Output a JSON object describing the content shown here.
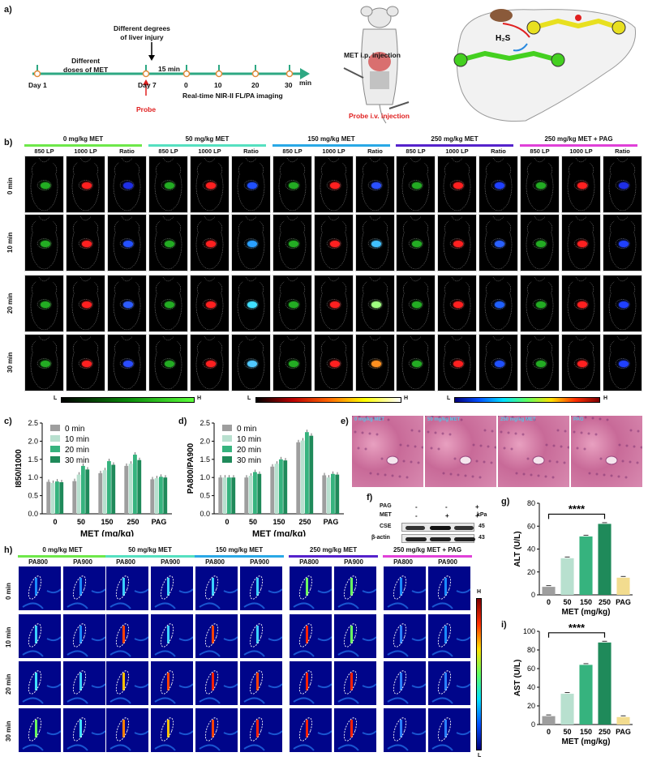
{
  "panel_letters": {
    "a": "a)",
    "b": "b)",
    "c": "c)",
    "d": "d)",
    "e": "e)",
    "f": "f)",
    "g": "g)",
    "h": "h)",
    "i": "i)"
  },
  "timeline": {
    "labels": [
      "Day 1",
      "Day 7",
      "0",
      "10",
      "20",
      "30"
    ],
    "unit": "min",
    "doses": "Different\ndoses of MET",
    "injury": "Different degrees\nof liver injury",
    "interval": "15 min",
    "probe": "Probe",
    "imaging": "Real-time NIR-II FL/PA imaging"
  },
  "mouse": {
    "met_injection": "MET i.p. injection",
    "probe_injection": "Probe i.v. injection",
    "h2s": "H2S"
  },
  "groups": [
    {
      "title": "0 mg/kg MET",
      "color": "#6ee84a"
    },
    {
      "title": "50 mg/kg MET",
      "color": "#55e0c0"
    },
    {
      "title": "150 mg/kg MET",
      "color": "#29a8e6"
    },
    {
      "title": "250 mg/kg MET",
      "color": "#5522cc"
    },
    {
      "title": "250 mg/kg MET + PAG",
      "color": "#e040d8"
    }
  ],
  "fl_columns": [
    "850 LP",
    "1000 LP",
    "Ratio"
  ],
  "pa_columns": [
    "PA800",
    "PA900"
  ],
  "rows": [
    "0 min",
    "10 min",
    "20 min",
    "30 min"
  ],
  "colorbars": {
    "low": "L",
    "high": "H"
  },
  "chart_data": [
    {
      "type": "bar",
      "panel": "c",
      "ylabel": "I850/I1000",
      "xlabel": "MET (mg/kg)",
      "categories": [
        "0",
        "50",
        "150",
        "250",
        "PAG"
      ],
      "ylim": [
        0.0,
        2.5
      ],
      "series": [
        {
          "name": "0 min",
          "color": "#9e9e9e",
          "values": [
            0.88,
            0.9,
            1.12,
            1.32,
            0.95
          ]
        },
        {
          "name": "10 min",
          "color": "#b8e0cf",
          "values": [
            0.85,
            1.08,
            1.2,
            1.38,
            0.98
          ]
        },
        {
          "name": "20 min",
          "color": "#36b37e",
          "values": [
            0.89,
            1.32,
            1.45,
            1.63,
            1.02
          ]
        },
        {
          "name": "30 min",
          "color": "#1f8a5a",
          "values": [
            0.87,
            1.22,
            1.35,
            1.48,
            1.0
          ]
        }
      ]
    },
    {
      "type": "bar",
      "panel": "d",
      "ylabel": "PA800/PA900",
      "xlabel": "MET (mg/kg)",
      "categories": [
        "0",
        "50",
        "150",
        "250",
        "PAG"
      ],
      "ylim": [
        0.0,
        2.5
      ],
      "series": [
        {
          "name": "0 min",
          "color": "#9e9e9e",
          "values": [
            1.0,
            1.0,
            1.3,
            1.97,
            1.06
          ]
        },
        {
          "name": "10 min",
          "color": "#b8e0cf",
          "values": [
            1.0,
            1.05,
            1.38,
            2.02,
            1.0
          ]
        },
        {
          "name": "20 min",
          "color": "#36b37e",
          "values": [
            1.0,
            1.15,
            1.5,
            2.25,
            1.1
          ]
        },
        {
          "name": "30 min",
          "color": "#1f8a5a",
          "values": [
            1.0,
            1.1,
            1.47,
            2.15,
            1.08
          ]
        }
      ]
    },
    {
      "type": "bar",
      "panel": "g",
      "ylabel": "ALT (U/L)",
      "xlabel": "MET (mg/kg)",
      "categories": [
        "0",
        "50",
        "150",
        "250",
        "PAG"
      ],
      "ylim": [
        0,
        80
      ],
      "colors": [
        "#9e9e9e",
        "#b8e0cf",
        "#36b37e",
        "#1f8a5a",
        "#f2dc8f"
      ],
      "values": [
        7,
        32,
        51,
        62,
        15
      ],
      "annotation": "****"
    },
    {
      "type": "bar",
      "panel": "i",
      "ylabel": "AST (U/L)",
      "xlabel": "MET (mg/kg)",
      "categories": [
        "0",
        "50",
        "150",
        "250",
        "PAG"
      ],
      "ylim": [
        0,
        100
      ],
      "colors": [
        "#9e9e9e",
        "#b8e0cf",
        "#36b37e",
        "#1f8a5a",
        "#f2dc8f"
      ],
      "values": [
        9,
        33,
        64,
        88,
        8
      ],
      "annotation": "****"
    }
  ],
  "histology": [
    "0 mg/kg MET",
    "50 mg/kg MET",
    "250 mg/kg MET",
    "PAG"
  ],
  "western": {
    "rows": [
      {
        "label": "PAG",
        "marks": [
          "-",
          "-",
          "+"
        ]
      },
      {
        "label": "MET",
        "marks": [
          "-",
          "+",
          "+"
        ]
      }
    ],
    "bands": [
      {
        "label": "CSE",
        "kda": "45"
      },
      {
        "label": "β-actin",
        "kda": "43"
      }
    ],
    "kda_unit": "kPa"
  }
}
